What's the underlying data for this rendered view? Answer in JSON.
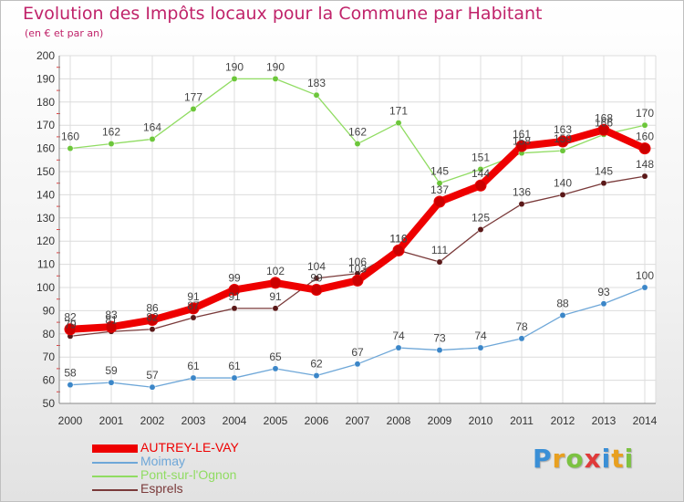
{
  "header": {
    "title": "Evolution des Impôts locaux pour la Commune par Habitant",
    "subtitle": "(en € et par an)"
  },
  "logo": {
    "text": "Proxiti",
    "letters": [
      {
        "ch": "P",
        "color": "#3a8fd6"
      },
      {
        "ch": "r",
        "color": "#e8a020"
      },
      {
        "ch": "o",
        "color": "#7cc242"
      },
      {
        "ch": "x",
        "color": "#e03a3a"
      },
      {
        "ch": "i",
        "color": "#3a8fd6"
      },
      {
        "ch": "t",
        "color": "#e8a020"
      },
      {
        "ch": "i",
        "color": "#7cc242"
      }
    ]
  },
  "chart_data": {
    "type": "line",
    "title": "Evolution des Impôts locaux pour la Commune par Habitant",
    "subtitle": "(en € et par an)",
    "x": [
      2000,
      2001,
      2002,
      2003,
      2004,
      2005,
      2006,
      2007,
      2008,
      2009,
      2010,
      2011,
      2012,
      2013,
      2014
    ],
    "ylim": [
      50,
      200
    ],
    "yticks": [
      50,
      60,
      70,
      80,
      90,
      100,
      110,
      120,
      130,
      140,
      150,
      160,
      170,
      180,
      190,
      200
    ],
    "grid": true,
    "legend_position": "bottom-left",
    "series": [
      {
        "name": "AUTREY-LE-VAY",
        "color": "#ee0000",
        "marker_color": "#cc0000",
        "style": "thick",
        "values": [
          82,
          83,
          86,
          91,
          99,
          102,
          99,
          103,
          116,
          137,
          144,
          161,
          163,
          168,
          160
        ]
      },
      {
        "name": "Moimay",
        "color": "#6ea7d8",
        "marker_color": "#3b86c8",
        "style": "thin",
        "values": [
          58,
          59,
          57,
          61,
          61,
          65,
          62,
          67,
          74,
          73,
          74,
          78,
          88,
          93,
          100
        ]
      },
      {
        "name": "Pont-sur-l'Ognon",
        "color": "#90dc62",
        "marker_color": "#6cc63a",
        "style": "thin",
        "values": [
          160,
          162,
          164,
          177,
          190,
          190,
          183,
          162,
          171,
          145,
          151,
          158,
          159,
          166,
          170
        ]
      },
      {
        "name": "Esprels",
        "color": "#7a3a3a",
        "marker_color": "#5a1818",
        "style": "thin",
        "values": [
          79,
          81,
          82,
          87,
          91,
          91,
          104,
          106,
          116,
          111,
          125,
          136,
          140,
          145,
          148
        ]
      }
    ]
  }
}
